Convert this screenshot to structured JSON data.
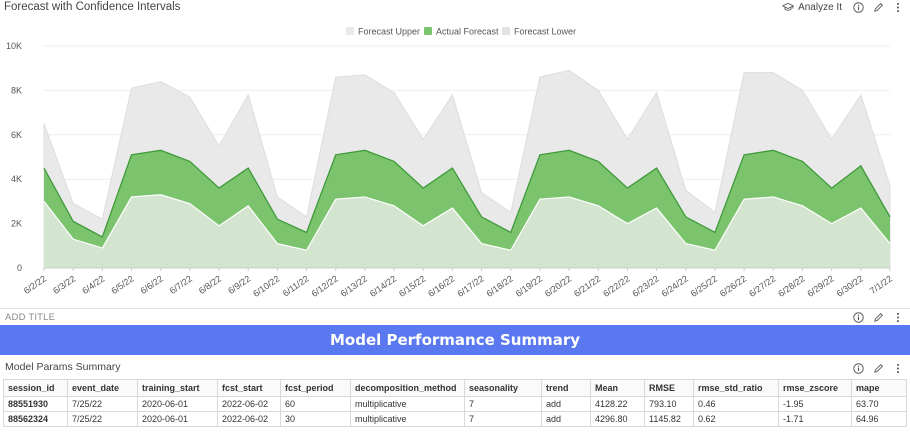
{
  "chart_panel": {
    "title": "Forecast with Confidence Intervals",
    "analyze_label": "Analyze It"
  },
  "title_bar": {
    "placeholder": "ADD TITLE"
  },
  "banner": {
    "text": "Model Performance Summary"
  },
  "table_panel": {
    "title": "Model Params Summary",
    "columns": [
      "session_id",
      "event_date",
      "training_start",
      "fcst_start",
      "fcst_period",
      "decomposition_method",
      "seasonality",
      "trend",
      "Mean",
      "RMSE",
      "rmse_std_ratio",
      "rmse_zscore",
      "mape"
    ],
    "rows": [
      [
        "88551930",
        "7/25/22",
        "2020-06-01",
        "2022-06-02",
        "60",
        "multiplicative",
        "7",
        "add",
        "4128.22",
        "793.10",
        "0.46",
        "-1.95",
        "63.70"
      ],
      [
        "88562324",
        "7/25/22",
        "2020-06-01",
        "2022-06-02",
        "30",
        "multiplicative",
        "7",
        "add",
        "4296.80",
        "1145.82",
        "0.62",
        "-1.71",
        "64.96"
      ]
    ]
  },
  "colors": {
    "upper": "#e9e9e9",
    "actual": "#7cc36e",
    "actual_line": "#3f9a3a",
    "lower": "#d3e4cf",
    "banner": "#5a78f0"
  },
  "chart_data": {
    "type": "area",
    "title": "Forecast with Confidence Intervals",
    "x": [
      "6/2/22",
      "6/3/22",
      "6/4/22",
      "6/5/22",
      "6/6/22",
      "6/7/22",
      "6/8/22",
      "6/9/22",
      "6/10/22",
      "6/11/22",
      "6/12/22",
      "6/13/22",
      "6/14/22",
      "6/15/22",
      "6/16/22",
      "6/17/22",
      "6/18/22",
      "6/19/22",
      "6/20/22",
      "6/21/22",
      "6/22/22",
      "6/23/22",
      "6/24/22",
      "6/25/22",
      "6/26/22",
      "6/27/22",
      "6/28/22",
      "6/29/22",
      "6/30/22",
      "7/1/22"
    ],
    "series": [
      {
        "name": "Forecast Upper",
        "values": [
          6500,
          2900,
          2200,
          8100,
          8400,
          7700,
          5500,
          7800,
          3200,
          2300,
          8600,
          8700,
          7900,
          5800,
          7800,
          3400,
          2500,
          8600,
          8900,
          8000,
          5800,
          7900,
          3500,
          2500,
          8800,
          8800,
          8000,
          5800,
          7800,
          3700
        ]
      },
      {
        "name": "Actual Forecast",
        "values": [
          4500,
          2100,
          1400,
          5100,
          5300,
          4800,
          3600,
          4500,
          2200,
          1600,
          5100,
          5300,
          4800,
          3600,
          4500,
          2300,
          1600,
          5100,
          5300,
          4800,
          3600,
          4500,
          2300,
          1600,
          5100,
          5300,
          4800,
          3600,
          4600,
          2300
        ]
      },
      {
        "name": "Forecast Lower",
        "values": [
          3000,
          1300,
          900,
          3200,
          3300,
          2900,
          1900,
          2800,
          1100,
          800,
          3100,
          3200,
          2800,
          1900,
          2700,
          1100,
          800,
          3100,
          3200,
          2800,
          2000,
          2700,
          1100,
          800,
          3100,
          3200,
          2800,
          2000,
          2700,
          1100
        ]
      }
    ],
    "yticks": [
      0,
      2000,
      4000,
      6000,
      8000,
      10000
    ],
    "ytick_labels": [
      "0",
      "2K",
      "4K",
      "6K",
      "8K",
      "10K"
    ],
    "ylim": [
      0,
      10000
    ],
    "legend": [
      "Forecast Upper",
      "Actual Forecast",
      "Forecast Lower"
    ],
    "legend_position": "top-center"
  }
}
